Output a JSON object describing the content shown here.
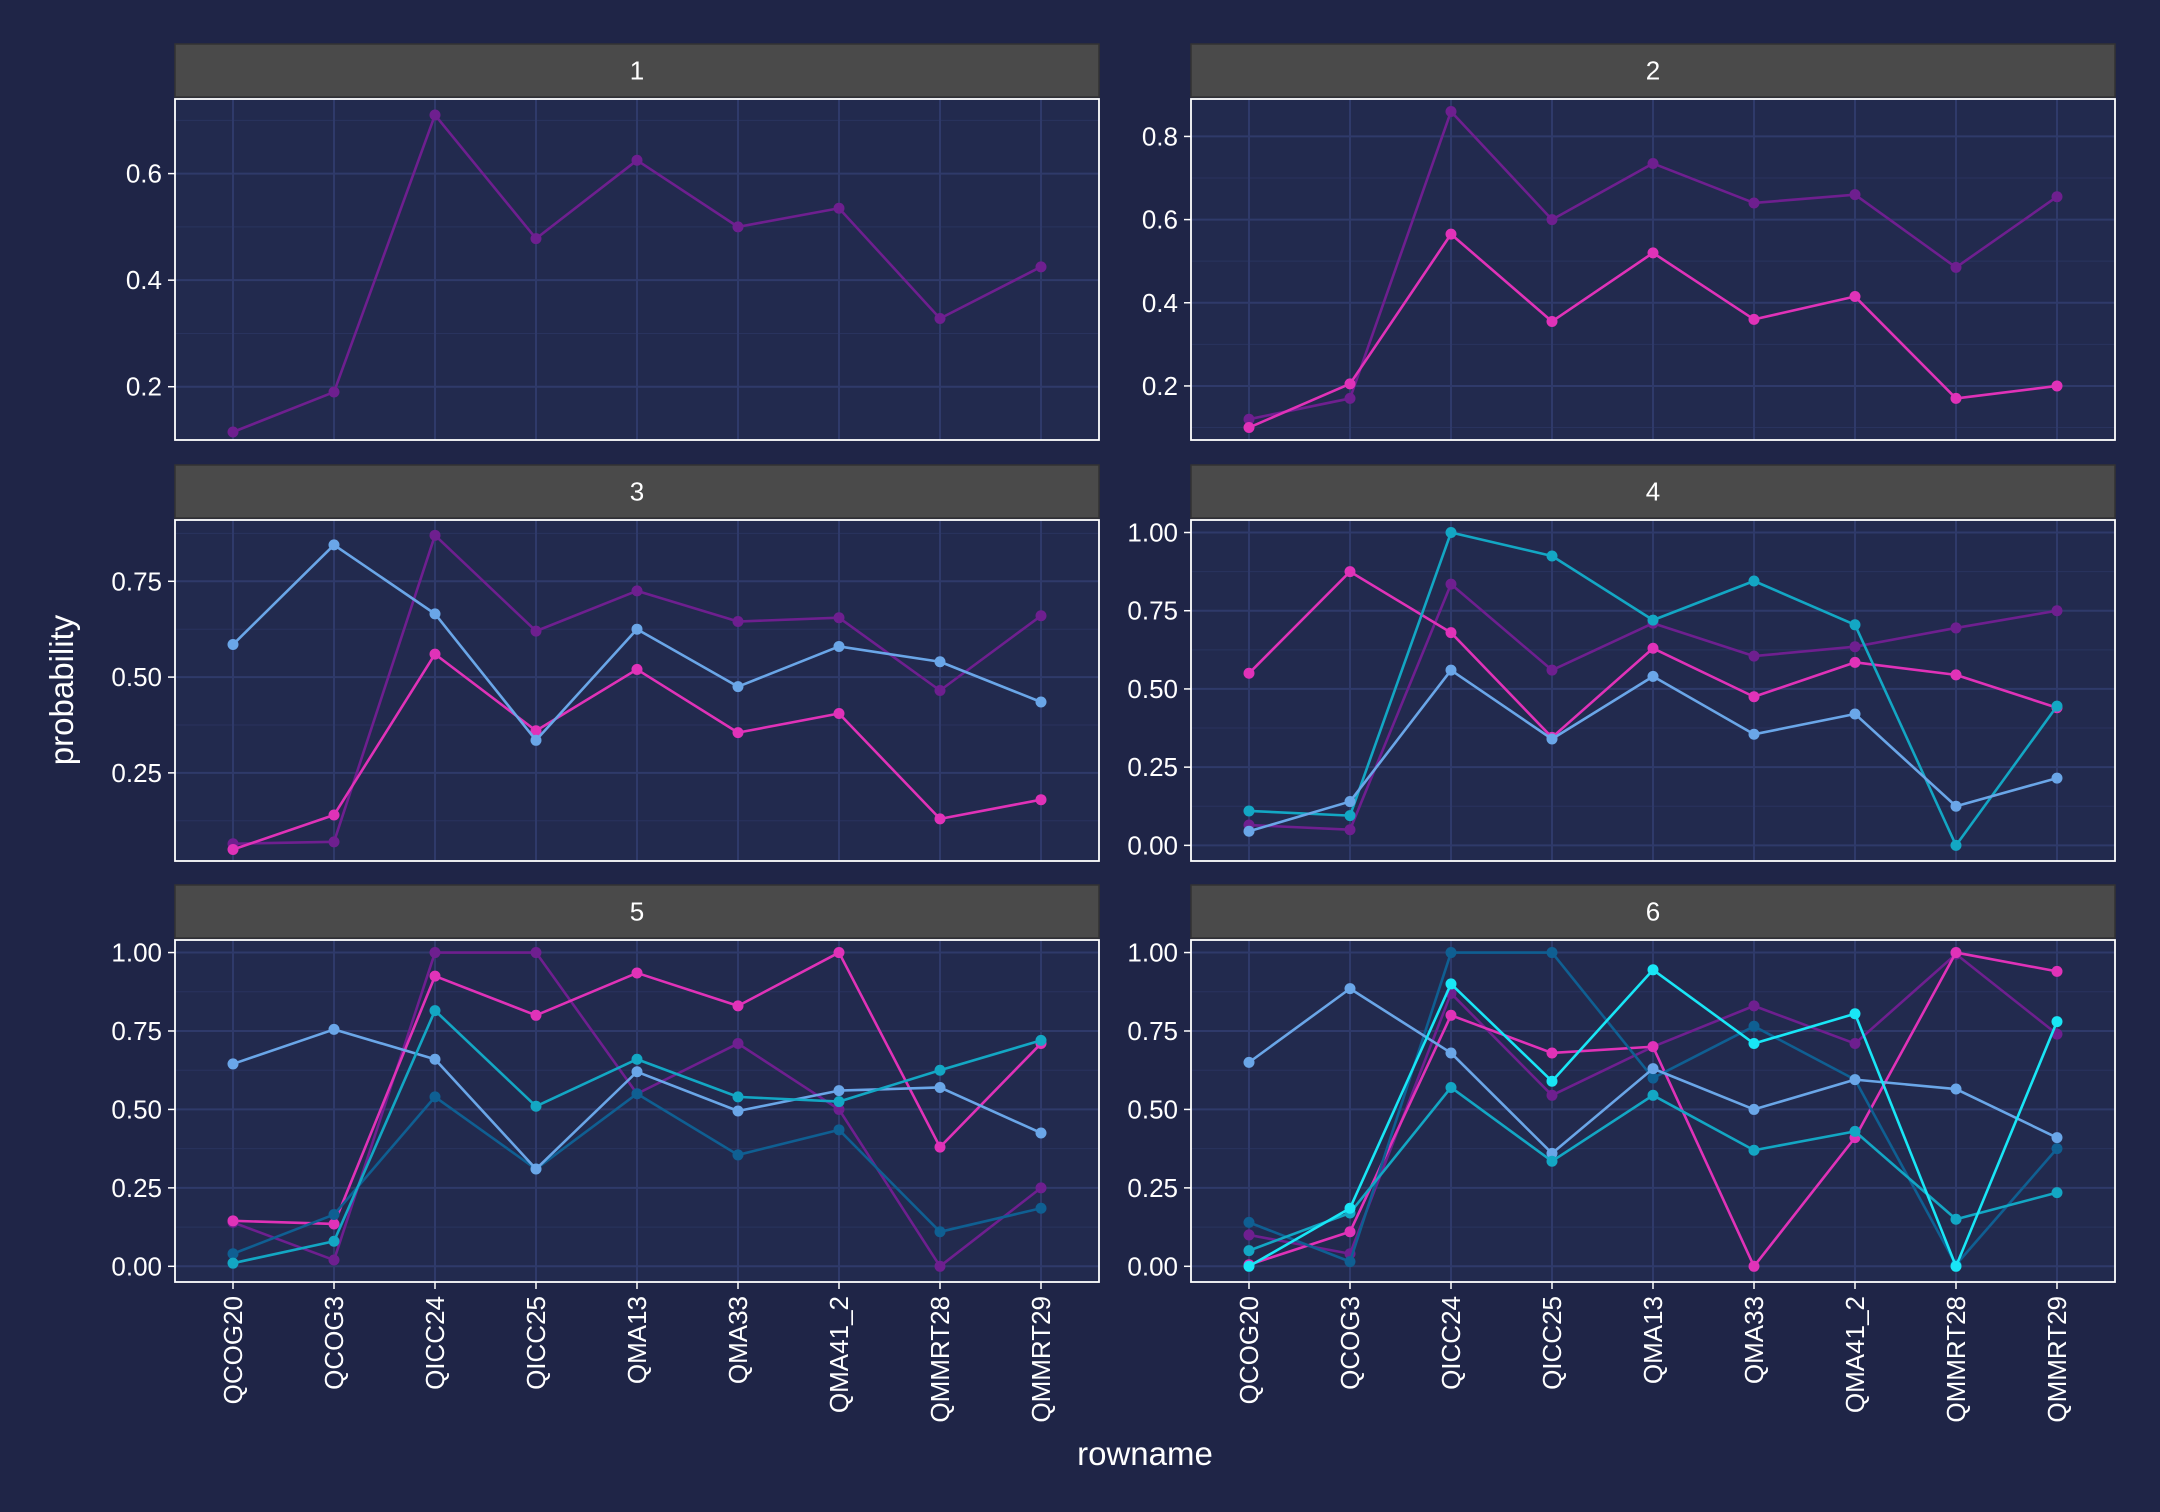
{
  "chart_data": {
    "type": "line",
    "layout": "facet-grid 3 rows x 2 columns",
    "xlabel": "rowname",
    "ylabel": "probability",
    "categories": [
      "QCOG20",
      "QCOG3",
      "QICC24",
      "QICC25",
      "QMA13",
      "QMA33",
      "QMA41_2",
      "QMMRT28",
      "QMMRT29"
    ],
    "colors": {
      "background": "#1f2547",
      "panel": "#222a4e",
      "grid": "#2f3a6a",
      "strip_fill": "#4a4a4a",
      "series": [
        "#6e1f8f",
        "#e032b8",
        "#6aa6e8",
        "#13a7c4",
        "#0f5f92",
        "#19e6f6"
      ]
    },
    "panels": [
      {
        "label": "1",
        "ylim": [
          0.1,
          0.74
        ],
        "yticks": [
          0.2,
          0.4,
          0.6
        ],
        "ytick_labels": [
          "0.2",
          "0.4",
          "0.6"
        ],
        "series": [
          {
            "color": "#6e1f8f",
            "values": [
              0.115,
              0.19,
              0.71,
              0.478,
              0.625,
              0.5,
              0.535,
              0.328,
              0.425
            ]
          }
        ]
      },
      {
        "label": "2",
        "ylim": [
          0.07,
          0.89
        ],
        "yticks": [
          0.2,
          0.4,
          0.6,
          0.8
        ],
        "ytick_labels": [
          "0.2",
          "0.4",
          "0.6",
          "0.8"
        ],
        "series": [
          {
            "color": "#6e1f8f",
            "values": [
              0.12,
              0.17,
              0.86,
              0.6,
              0.735,
              0.64,
              0.66,
              0.485,
              0.655
            ]
          },
          {
            "color": "#e032b8",
            "values": [
              0.1,
              0.205,
              0.565,
              0.355,
              0.52,
              0.36,
              0.415,
              0.17,
              0.2
            ]
          }
        ]
      },
      {
        "label": "3",
        "ylim": [
          0.02,
          0.91
        ],
        "yticks": [
          0.25,
          0.5,
          0.75
        ],
        "ytick_labels": [
          "0.25",
          "0.50",
          "0.75"
        ],
        "series": [
          {
            "color": "#6e1f8f",
            "values": [
              0.065,
              0.07,
              0.87,
              0.62,
              0.725,
              0.645,
              0.655,
              0.465,
              0.66
            ]
          },
          {
            "color": "#e032b8",
            "values": [
              0.05,
              0.14,
              0.56,
              0.36,
              0.52,
              0.355,
              0.405,
              0.13,
              0.18
            ]
          },
          {
            "color": "#6aa6e8",
            "values": [
              0.585,
              0.845,
              0.665,
              0.335,
              0.625,
              0.475,
              0.58,
              0.54,
              0.435
            ]
          }
        ]
      },
      {
        "label": "4",
        "ylim": [
          -0.05,
          1.04
        ],
        "yticks": [
          0,
          0.25,
          0.5,
          0.75,
          1
        ],
        "ytick_labels": [
          "0.00",
          "0.25",
          "0.50",
          "0.75",
          "1.00"
        ],
        "series": [
          {
            "color": "#6e1f8f",
            "values": [
              0.065,
              0.05,
              0.835,
              0.56,
              0.71,
              0.605,
              0.635,
              0.695,
              0.75
            ]
          },
          {
            "color": "#e032b8",
            "values": [
              0.55,
              0.875,
              0.68,
              0.345,
              0.63,
              0.475,
              0.585,
              0.545,
              0.44
            ]
          },
          {
            "color": "#13a7c4",
            "values": [
              0.11,
              0.095,
              1.0,
              0.925,
              0.72,
              0.845,
              0.705,
              0.0,
              0.445
            ]
          },
          {
            "color": "#6aa6e8",
            "values": [
              0.045,
              0.14,
              0.56,
              0.34,
              0.54,
              0.355,
              0.42,
              0.125,
              0.215
            ]
          }
        ]
      },
      {
        "label": "5",
        "ylim": [
          -0.05,
          1.04
        ],
        "yticks": [
          0,
          0.25,
          0.5,
          0.75,
          1
        ],
        "ytick_labels": [
          "0.00",
          "0.25",
          "0.50",
          "0.75",
          "1.00"
        ],
        "series": [
          {
            "color": "#6e1f8f",
            "values": [
              0.14,
              0.02,
              1.0,
              1.0,
              0.55,
              0.71,
              0.5,
              0.0,
              0.25
            ]
          },
          {
            "color": "#e032b8",
            "values": [
              0.145,
              0.135,
              0.925,
              0.8,
              0.935,
              0.83,
              1.0,
              0.38,
              0.71
            ]
          },
          {
            "color": "#0f5f92",
            "values": [
              0.04,
              0.165,
              0.54,
              0.31,
              0.55,
              0.355,
              0.435,
              0.11,
              0.185
            ]
          },
          {
            "color": "#6aa6e8",
            "values": [
              0.645,
              0.755,
              0.66,
              0.31,
              0.62,
              0.495,
              0.56,
              0.57,
              0.425
            ]
          },
          {
            "color": "#13a7c4",
            "values": [
              0.01,
              0.08,
              0.815,
              0.51,
              0.66,
              0.54,
              0.525,
              0.625,
              0.72
            ]
          }
        ]
      },
      {
        "label": "6",
        "ylim": [
          -0.05,
          1.04
        ],
        "yticks": [
          0,
          0.25,
          0.5,
          0.75,
          1
        ],
        "ytick_labels": [
          "0.00",
          "0.25",
          "0.50",
          "0.75",
          "1.00"
        ],
        "series": [
          {
            "color": "#6e1f8f",
            "values": [
              0.1,
              0.04,
              0.87,
              0.545,
              0.7,
              0.83,
              0.71,
              0.995,
              0.74
            ]
          },
          {
            "color": "#e032b8",
            "values": [
              0.005,
              0.11,
              0.8,
              0.68,
              0.7,
              0.0,
              0.41,
              1.0,
              0.94
            ]
          },
          {
            "color": "#0f5f92",
            "values": [
              0.14,
              0.015,
              1.0,
              1.0,
              0.6,
              0.765,
              0.595,
              0.005,
              0.375
            ]
          },
          {
            "color": "#6aa6e8",
            "values": [
              0.65,
              0.885,
              0.68,
              0.36,
              0.63,
              0.5,
              0.595,
              0.565,
              0.41
            ]
          },
          {
            "color": "#13a7c4",
            "values": [
              0.05,
              0.17,
              0.57,
              0.335,
              0.545,
              0.37,
              0.43,
              0.15,
              0.235
            ]
          },
          {
            "color": "#19e6f6",
            "values": [
              0.0,
              0.185,
              0.9,
              0.59,
              0.945,
              0.71,
              0.805,
              0.0,
              0.78
            ]
          }
        ]
      }
    ]
  }
}
